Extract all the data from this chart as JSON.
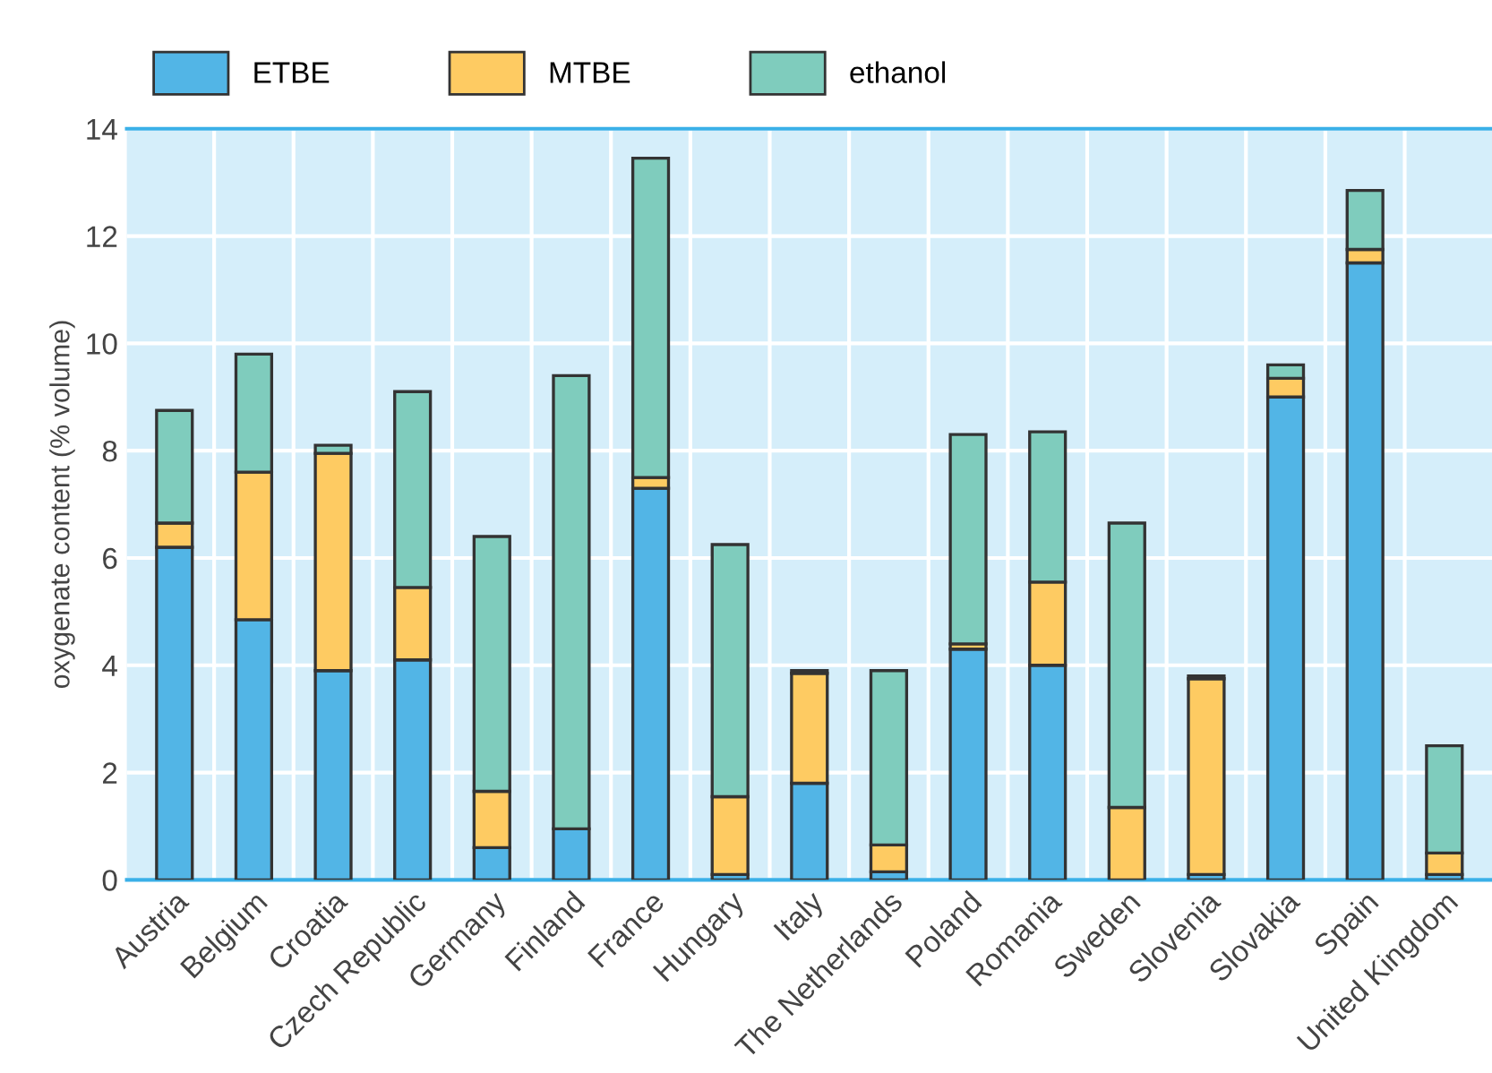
{
  "chart_data": {
    "type": "bar",
    "stacked": true,
    "ylabel": "oxygenate content (% volume)",
    "categories": [
      "Austria",
      "Belgium",
      "Croatia",
      "Czech Republic",
      "Germany",
      "Finland",
      "France",
      "Hungary",
      "Italy",
      "The Netherlands",
      "Poland",
      "Romania",
      "Sweden",
      "Slovenia",
      "Slovakia",
      "Spain",
      "United Kingdom"
    ],
    "series": [
      {
        "name": "ETBE",
        "color": "#52b5e6",
        "values": [
          6.2,
          4.85,
          3.9,
          4.1,
          0.6,
          0.95,
          7.3,
          0.1,
          1.8,
          0.15,
          4.3,
          4.0,
          0,
          0.1,
          9.0,
          11.5,
          0.1
        ]
      },
      {
        "name": "MTBE",
        "color": "#fecb62",
        "values": [
          0.45,
          2.75,
          4.05,
          1.35,
          1.05,
          0,
          0.2,
          1.45,
          2.05,
          0.5,
          0.1,
          1.55,
          1.35,
          3.65,
          0.35,
          0.25,
          0.4
        ]
      },
      {
        "name": "ethanol",
        "color": "#7fccbd",
        "values": [
          2.1,
          2.2,
          0.15,
          3.65,
          4.75,
          8.45,
          5.95,
          4.7,
          0.05,
          3.25,
          3.9,
          2.8,
          5.3,
          0.05,
          0.25,
          1.1,
          2.0
        ]
      }
    ],
    "ylim": [
      0,
      14
    ],
    "yticks": [
      0,
      2,
      4,
      6,
      8,
      10,
      12,
      14
    ],
    "grid": true,
    "legend": "top left"
  }
}
